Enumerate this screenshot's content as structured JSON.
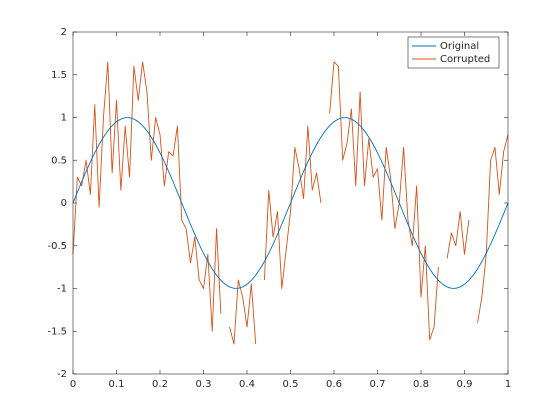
{
  "chart_data": {
    "type": "line",
    "x": [
      0,
      0.01,
      0.02,
      0.03,
      0.04,
      0.05,
      0.06,
      0.07,
      0.08,
      0.09,
      0.1,
      0.11,
      0.12,
      0.13,
      0.14,
      0.15,
      0.16,
      0.17,
      0.18,
      0.19,
      0.2,
      0.21,
      0.22,
      0.23,
      0.24,
      0.25,
      0.26,
      0.27,
      0.28,
      0.29,
      0.3,
      0.31,
      0.32,
      0.33,
      0.34,
      0.35,
      0.36,
      0.37,
      0.38,
      0.39,
      0.4,
      0.41,
      0.42,
      0.43,
      0.44,
      0.45,
      0.46,
      0.47,
      0.48,
      0.49,
      0.5,
      0.51,
      0.52,
      0.53,
      0.54,
      0.55,
      0.56,
      0.57,
      0.58,
      0.59,
      0.6,
      0.61,
      0.62,
      0.63,
      0.64,
      0.65,
      0.66,
      0.67,
      0.68,
      0.69,
      0.7,
      0.71,
      0.72,
      0.73,
      0.74,
      0.75,
      0.76,
      0.77,
      0.78,
      0.79,
      0.8,
      0.81,
      0.82,
      0.83,
      0.84,
      0.85,
      0.86,
      0.87,
      0.88,
      0.89,
      0.9,
      0.91,
      0.92,
      0.93,
      0.94,
      0.95,
      0.96,
      0.97,
      0.98,
      0.99,
      1
    ],
    "series": [
      {
        "name": "Original",
        "color": "#0072bd",
        "values": [
          0,
          0.1253,
          0.2487,
          0.3681,
          0.4818,
          0.5878,
          0.6845,
          0.7705,
          0.8443,
          0.9048,
          0.9511,
          0.9823,
          0.998,
          0.998,
          0.9823,
          0.9511,
          0.9048,
          0.8443,
          0.7705,
          0.6845,
          0.5878,
          0.4818,
          0.3681,
          0.2487,
          0.1253,
          0,
          -0.1253,
          -0.2487,
          -0.3681,
          -0.4818,
          -0.5878,
          -0.6845,
          -0.7705,
          -0.8443,
          -0.9048,
          -0.9511,
          -0.9823,
          -0.998,
          -0.998,
          -0.9823,
          -0.9511,
          -0.9048,
          -0.8443,
          -0.7705,
          -0.6845,
          -0.5878,
          -0.4818,
          -0.3681,
          -0.2487,
          -0.1253,
          0,
          0.1253,
          0.2487,
          0.3681,
          0.4818,
          0.5878,
          0.6845,
          0.7705,
          0.8443,
          0.9048,
          0.9511,
          0.9823,
          0.998,
          0.998,
          0.9823,
          0.9511,
          0.9048,
          0.8443,
          0.7705,
          0.6845,
          0.5878,
          0.4818,
          0.3681,
          0.2487,
          0.1253,
          0,
          -0.1253,
          -0.2487,
          -0.3681,
          -0.4818,
          -0.5878,
          -0.6845,
          -0.7705,
          -0.8443,
          -0.9048,
          -0.9511,
          -0.9823,
          -0.998,
          -0.998,
          -0.9823,
          -0.9511,
          -0.9048,
          -0.8443,
          -0.7705,
          -0.6845,
          -0.5878,
          -0.4818,
          -0.3681,
          -0.2487,
          -0.1253,
          0
        ]
      },
      {
        "name": "Corrupted",
        "color": "#d95319",
        "values": [
          -0.6,
          0.3,
          0.2,
          0.5,
          0.1,
          1.15,
          -0.05,
          1.0,
          1.65,
          0.35,
          1.2,
          0.15,
          0.9,
          0.3,
          1.6,
          1.2,
          1.65,
          1.3,
          0.5,
          1.0,
          0.8,
          0.2,
          0.6,
          0.55,
          0.9,
          -0.2,
          -0.3,
          -0.7,
          -0.4,
          -0.9,
          -1.0,
          -0.6,
          -1.5,
          -0.3,
          -1.3,
          null,
          -1.45,
          -1.65,
          -0.9,
          -1.1,
          -1.45,
          -0.95,
          -1.65,
          null,
          -0.9,
          0.15,
          -0.4,
          -0.1,
          -1.0,
          -0.55,
          -0.1,
          0.65,
          0.4,
          0.05,
          0.9,
          0.15,
          0.35,
          0.0,
          null,
          1.05,
          1.65,
          1.6,
          0.5,
          0.7,
          1.1,
          0.2,
          1.3,
          0.2,
          0.75,
          0.3,
          0.4,
          -0.2,
          0.65,
          0.3,
          -0.3,
          0.0,
          0.65,
          -0.2,
          -0.5,
          0.2,
          -1.1,
          -0.5,
          -1.6,
          -1.45,
          -0.75,
          null,
          -0.65,
          -0.35,
          -0.5,
          -0.1,
          -0.6,
          -0.2,
          null,
          -1.4,
          -1.1,
          -0.6,
          0.5,
          0.65,
          0.1,
          0.6,
          0.8
        ]
      }
    ],
    "xlim": [
      0,
      1
    ],
    "xticks": [
      0,
      0.1,
      0.2,
      0.3,
      0.4,
      0.5,
      0.6,
      0.7,
      0.8,
      0.9,
      1
    ],
    "ylim": [
      -2,
      2
    ],
    "yticks": [
      -2,
      -1.5,
      -1,
      -0.5,
      0,
      0.5,
      1,
      1.5,
      2
    ],
    "grid": false,
    "legend": "northeast"
  }
}
